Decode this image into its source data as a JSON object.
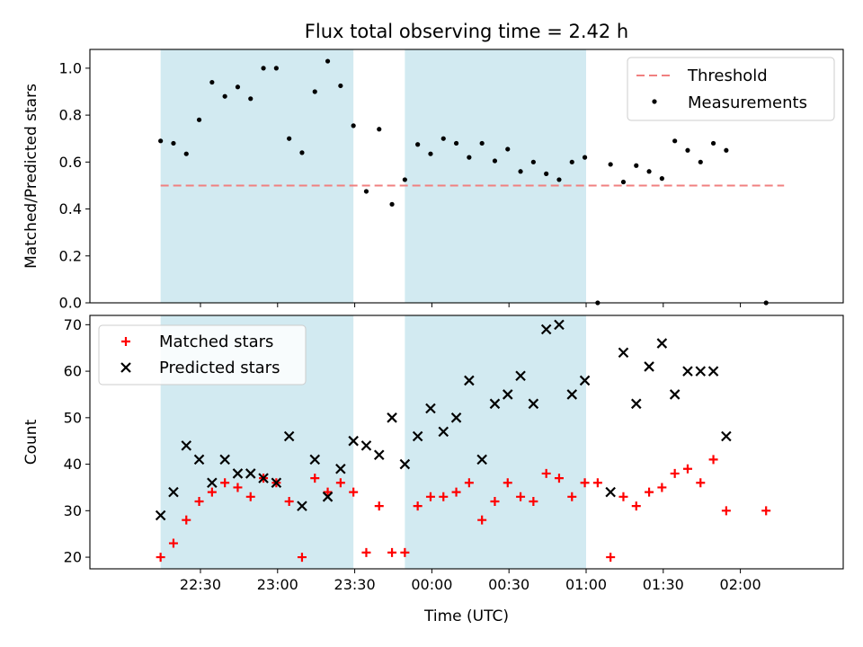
{
  "chart_data": {
    "title": "Flux total observing time = 2.42 h",
    "xlabel": "Time (UTC)",
    "x_ticks": [
      "22:30",
      "23:00",
      "23:30",
      "00:00",
      "00:30",
      "01:00",
      "01:30",
      "02:00"
    ],
    "x_tick_minutes": [
      150,
      180,
      210,
      240,
      270,
      300,
      330,
      360
    ],
    "x_range_minutes": [
      107,
      400
    ],
    "shaded_intervals_minutes": [
      [
        134.5,
        209.5
      ],
      [
        229.5,
        300
      ]
    ],
    "shade_color": "#add8e6",
    "top": {
      "type": "scatter",
      "ylabel": "Matched/Predicted stars",
      "ylim": [
        0,
        1.08
      ],
      "y_ticks": [
        "0.0",
        "0.2",
        "0.4",
        "0.6",
        "0.8",
        "1.0"
      ],
      "y_tick_values": [
        0,
        0.2,
        0.4,
        0.6,
        0.8,
        1.0
      ],
      "threshold": {
        "name": "Threshold",
        "value": 0.5,
        "x_start": 134.5,
        "x_end": 377,
        "color": "#f08080"
      },
      "series": [
        {
          "name": "Measurements",
          "color": "#000000",
          "x": [
            134.5,
            139.5,
            144.5,
            149.5,
            154.5,
            159.5,
            164.5,
            169.5,
            174.5,
            179.5,
            184.5,
            189.5,
            194.5,
            199.5,
            204.5,
            209.5,
            214.5,
            219.5,
            224.5,
            229.5,
            234.5,
            239.5,
            244.5,
            249.5,
            254.5,
            259.5,
            264.5,
            269.5,
            274.5,
            279.5,
            284.5,
            289.5,
            294.5,
            299.5,
            304.5,
            309.5,
            314.5,
            319.5,
            324.5,
            329.5,
            334.5,
            339.5,
            344.5,
            349.5,
            354.5,
            370
          ],
          "y": [
            0.69,
            0.68,
            0.635,
            0.78,
            0.94,
            0.88,
            0.92,
            0.87,
            1.0,
            1.0,
            0.7,
            0.64,
            0.9,
            1.03,
            0.925,
            0.755,
            0.475,
            0.74,
            0.42,
            0.525,
            0.675,
            0.635,
            0.7,
            0.68,
            0.62,
            0.68,
            0.605,
            0.655,
            0.56,
            0.6,
            0.55,
            0.525,
            0.6,
            0.62,
            0.0,
            0.59,
            0.515,
            0.585,
            0.56,
            0.53,
            0.69,
            0.65,
            0.6,
            0.68,
            0.65,
            0.0
          ]
        }
      ],
      "legend": [
        "Threshold",
        "Measurements"
      ],
      "legend_position": "top-right"
    },
    "bottom": {
      "type": "scatter",
      "ylabel": "Count",
      "ylim": [
        17.5,
        72
      ],
      "y_ticks": [
        "20",
        "30",
        "40",
        "50",
        "60",
        "70"
      ],
      "y_tick_values": [
        20,
        30,
        40,
        50,
        60,
        70
      ],
      "series": [
        {
          "name": "Matched stars",
          "marker": "+",
          "color": "#ff0000",
          "x": [
            134.5,
            139.5,
            144.5,
            149.5,
            154.5,
            159.5,
            164.5,
            169.5,
            174.5,
            179.5,
            184.5,
            189.5,
            194.5,
            199.5,
            204.5,
            209.5,
            214.5,
            219.5,
            224.5,
            229.5,
            234.5,
            239.5,
            244.5,
            249.5,
            254.5,
            259.5,
            264.5,
            269.5,
            274.5,
            279.5,
            284.5,
            289.5,
            294.5,
            299.5,
            304.5,
            309.5,
            314.5,
            319.5,
            324.5,
            329.5,
            334.5,
            339.5,
            344.5,
            349.5,
            354.5,
            370
          ],
          "y": [
            20,
            23,
            28,
            32,
            34,
            36,
            35,
            33,
            37,
            36,
            32,
            20,
            37,
            34,
            36,
            34,
            21,
            31,
            21,
            21,
            31,
            33,
            33,
            34,
            36,
            28,
            32,
            36,
            33,
            32,
            38,
            37,
            33,
            36,
            36,
            20,
            33,
            31,
            34,
            35,
            38,
            39,
            36,
            41,
            30,
            30
          ]
        },
        {
          "name": "Predicted stars",
          "marker": "x",
          "color": "#000000",
          "x": [
            134.5,
            139.5,
            144.5,
            149.5,
            154.5,
            159.5,
            164.5,
            169.5,
            174.5,
            179.5,
            184.5,
            189.5,
            194.5,
            199.5,
            204.5,
            209.5,
            214.5,
            219.5,
            224.5,
            229.5,
            234.5,
            239.5,
            244.5,
            249.5,
            254.5,
            259.5,
            264.5,
            269.5,
            274.5,
            279.5,
            284.5,
            289.5,
            294.5,
            299.5,
            309.5,
            314.5,
            319.5,
            324.5,
            329.5,
            334.5,
            339.5,
            344.5,
            349.5,
            354.5
          ],
          "y": [
            29,
            34,
            44,
            41,
            36,
            41,
            38,
            38,
            37,
            36,
            46,
            31,
            41,
            33,
            39,
            45,
            44,
            42,
            50,
            40,
            46,
            52,
            47,
            50,
            58,
            41,
            53,
            55,
            59,
            53,
            69,
            70,
            55,
            58,
            34,
            64,
            53,
            61,
            66,
            55,
            60,
            60,
            60,
            46
          ]
        }
      ],
      "legend": [
        "Matched stars",
        "Predicted stars"
      ],
      "legend_position": "top-left"
    }
  }
}
